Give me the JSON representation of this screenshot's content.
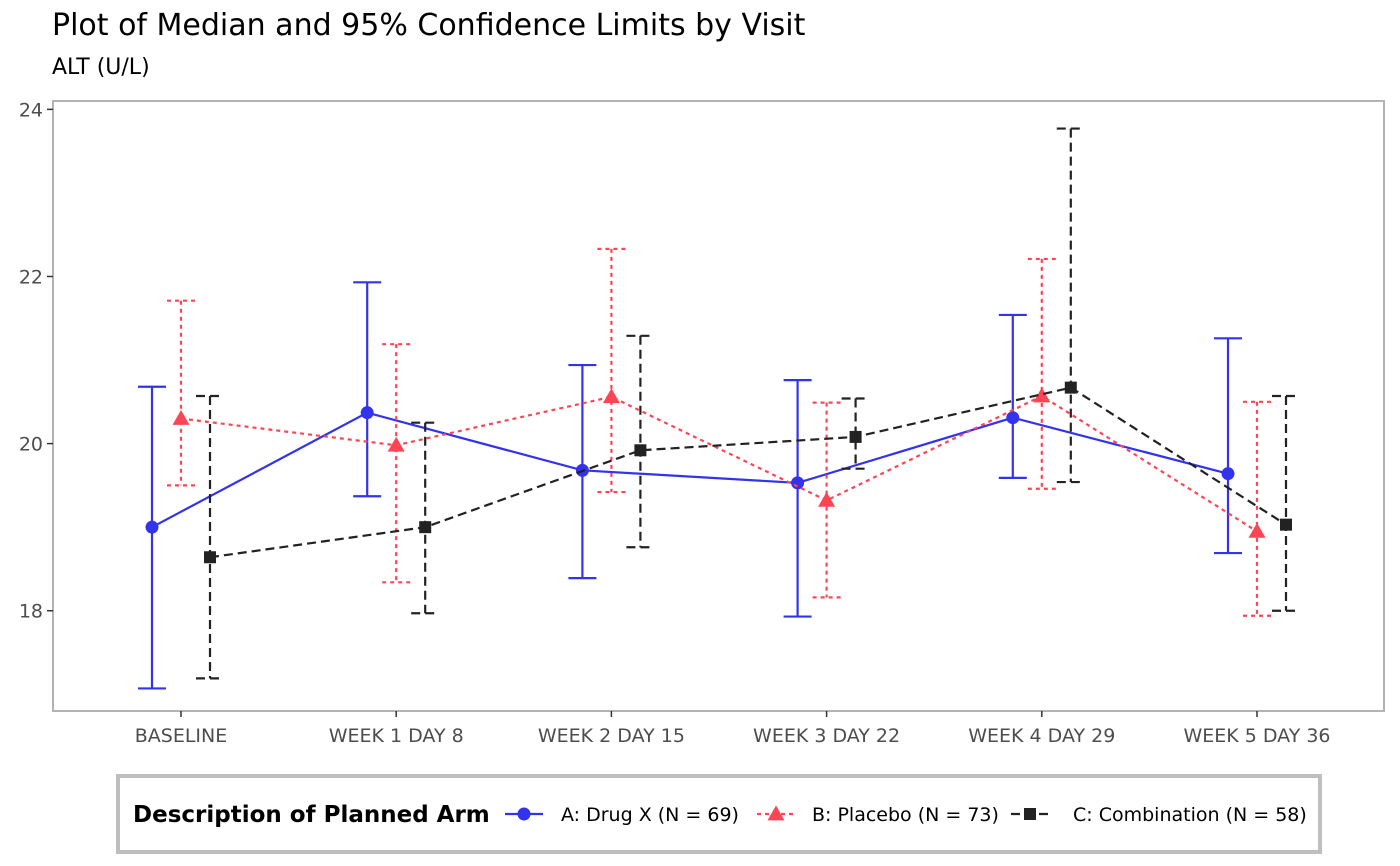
{
  "title": "Plot of Median and 95% Confidence Limits by Visit",
  "subtitle": "ALT (U/L)",
  "chart_data": {
    "type": "line",
    "title": "Plot of Median and 95% Confidence Limits by Visit",
    "subtitle": "ALT (U/L)",
    "xlabel": "",
    "ylabel": "",
    "categories": [
      "BASELINE",
      "WEEK 1 DAY 8",
      "WEEK 2 DAY 15",
      "WEEK 3 DAY 22",
      "WEEK 4 DAY 29",
      "WEEK 5 DAY 36"
    ],
    "ylim": [
      16.8,
      24.1
    ],
    "yticks": [
      18,
      20,
      22,
      24
    ],
    "grid": false,
    "legend_title": "Description of Planned Arm",
    "legend_position": "bottom",
    "error_bars": "95% confidence limits",
    "series": [
      {
        "name": "A: Drug X (N = 69)",
        "color": "#3333ee",
        "marker": "circle",
        "linestyle": "solid",
        "values": [
          19.0,
          20.37,
          19.68,
          19.53,
          20.31,
          19.64
        ],
        "lower": [
          17.07,
          19.37,
          18.39,
          17.93,
          19.59,
          18.69
        ],
        "upper": [
          20.68,
          21.93,
          20.94,
          20.76,
          21.54,
          21.26
        ]
      },
      {
        "name": "B: Placebo (N = 73)",
        "color": "#ff4455",
        "marker": "triangle",
        "linestyle": "dotted",
        "values": [
          20.3,
          19.98,
          20.56,
          19.32,
          20.57,
          18.95
        ],
        "lower": [
          19.5,
          18.34,
          19.42,
          18.16,
          19.46,
          17.94
        ],
        "upper": [
          21.71,
          21.19,
          22.33,
          20.49,
          22.21,
          20.5
        ]
      },
      {
        "name": "C: Combination (N = 58)",
        "color": "#222222",
        "marker": "square",
        "linestyle": "dashed",
        "values": [
          18.64,
          19.0,
          19.92,
          20.08,
          20.67,
          19.03
        ],
        "lower": [
          17.19,
          17.97,
          18.76,
          19.7,
          19.54,
          18.0
        ],
        "upper": [
          20.57,
          20.25,
          21.29,
          20.54,
          23.77,
          20.57
        ]
      }
    ]
  }
}
